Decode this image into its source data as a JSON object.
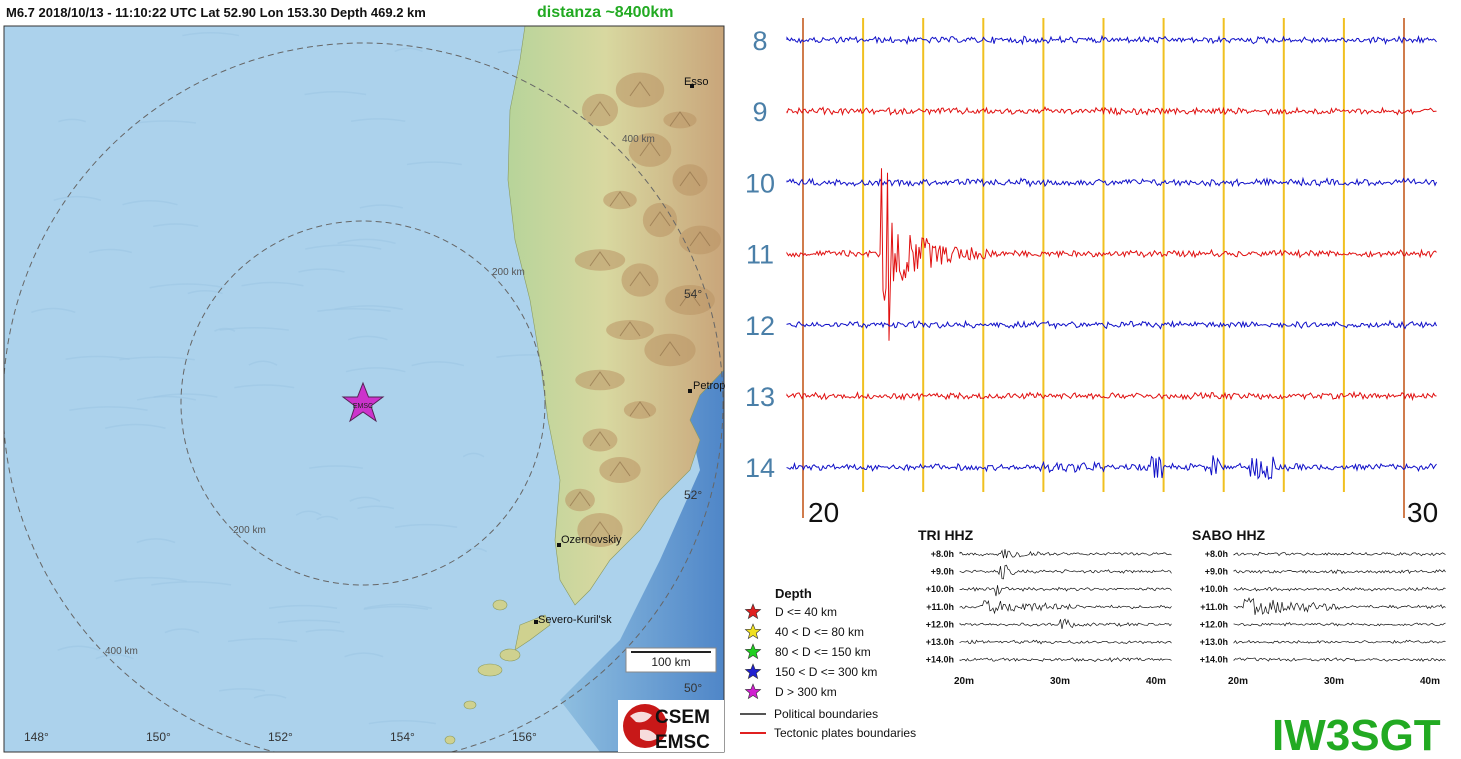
{
  "header": {
    "event_info": "M6.7   2018/10/13 - 11:10:22 UTC     Lat 52.90    Lon 153.30      Depth 469.2 km",
    "distance": "distanza ~8400km"
  },
  "map": {
    "cities": [
      "Esso",
      "Petrop",
      "Ozernovskiy",
      "Severo-Kuril'sk"
    ],
    "ring_labels": [
      "400 km",
      "200 km",
      "200 km",
      "400 km"
    ],
    "lat_labels": [
      "54°",
      "52°",
      "50°"
    ],
    "lon_labels": [
      "148°",
      "150°",
      "152°",
      "154°",
      "156°"
    ],
    "epicenter_label": "EMSC",
    "scale_bar": "100 km",
    "colors": {
      "sea": "#a9d0ea",
      "land": "#c8d89a",
      "mountain": "#c9a97a",
      "epicenter": "#cc33cc"
    }
  },
  "legend": {
    "title": "Depth",
    "items": [
      {
        "label": "D <= 40 km",
        "color": "#e02020"
      },
      {
        "label": "40 < D <= 80 km",
        "color": "#f0e020"
      },
      {
        "label": "80 < D <= 150 km",
        "color": "#20d020"
      },
      {
        "label": "150 < D <= 300 km",
        "color": "#2020d0"
      },
      {
        "label": "D > 300 km",
        "color": "#d020d0"
      }
    ],
    "lines": [
      {
        "label": "Political boundaries",
        "color": "#555555"
      },
      {
        "label": "Tectonic plates boundaries",
        "color": "#e02020"
      }
    ]
  },
  "logo": {
    "top": "CSEM",
    "bottom": "EMSC"
  },
  "seismogram": {
    "row_labels": [
      "8",
      "9",
      "10",
      "11",
      "12",
      "13",
      "14"
    ],
    "axis_start": "20",
    "axis_end": "30",
    "colors": {
      "blue": "#1010c8",
      "red": "#e01010",
      "minute_line": "#f0c020",
      "edge_line": "#c05010",
      "label": "#4a7fa8"
    }
  },
  "helicorders": [
    {
      "title": "TRI HHZ",
      "rows": [
        "+8.0h",
        "+9.0h",
        "+10.0h",
        "+11.0h",
        "+12.0h",
        "+13.0h",
        "+14.0h"
      ],
      "ticks": [
        "20m",
        "30m",
        "40m"
      ]
    },
    {
      "title": "SABO HHZ",
      "rows": [
        "+8.0h",
        "+9.0h",
        "+10.0h",
        "+11.0h",
        "+12.0h",
        "+13.0h",
        "+14.0h"
      ],
      "ticks": [
        "20m",
        "30m",
        "40m"
      ]
    }
  ],
  "callsign": "IW3SGT"
}
